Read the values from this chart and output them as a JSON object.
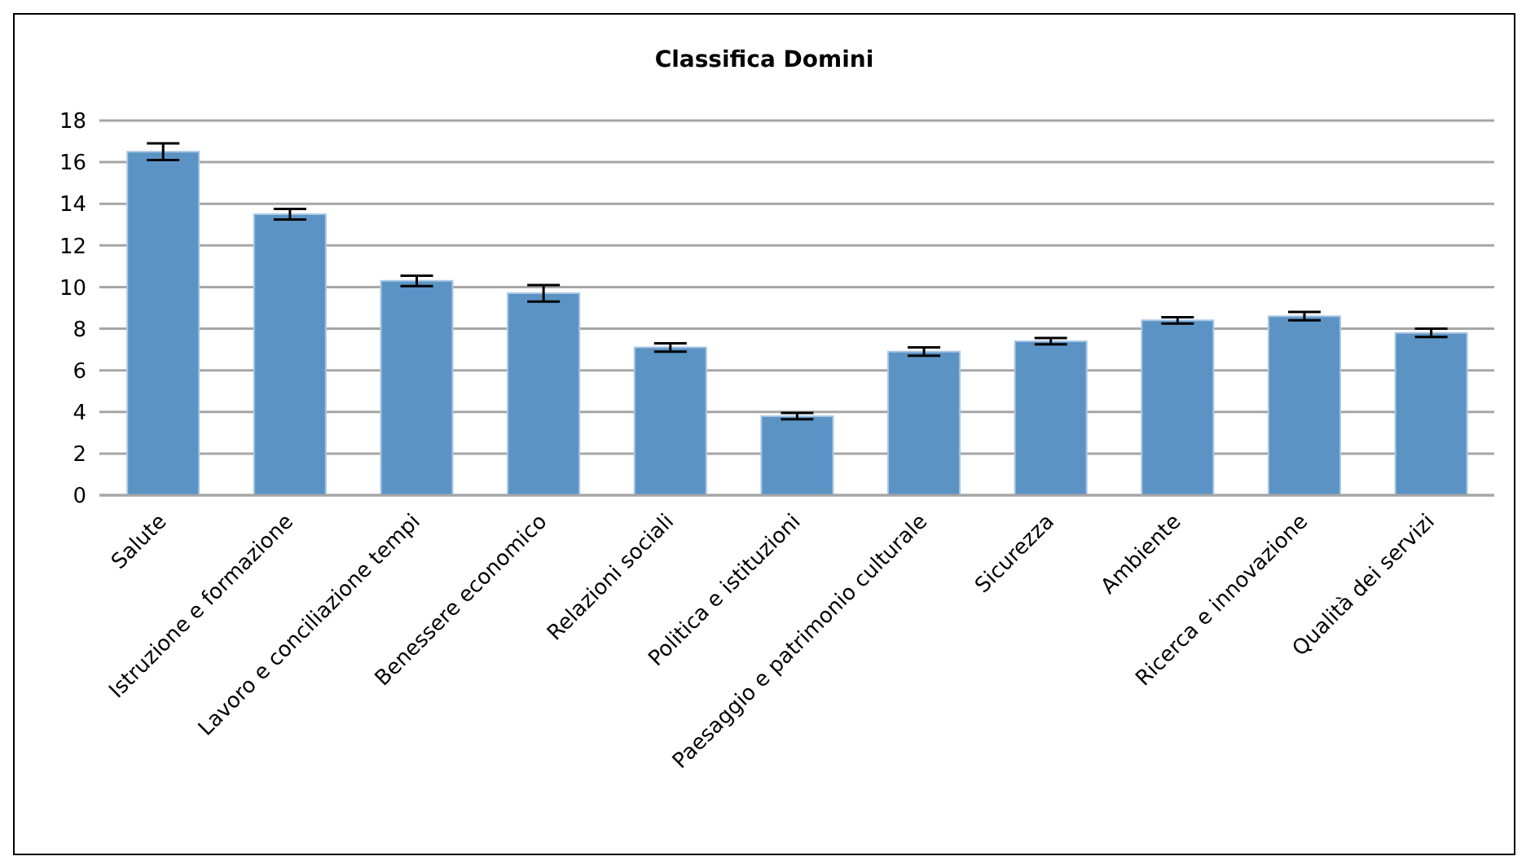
{
  "chart_data": {
    "type": "bar",
    "title": "Classifica Domini",
    "categories": [
      "Salute",
      "Istruzione e formazione",
      "Lavoro e conciliazione tempi",
      "Benessere economico",
      "Relazioni sociali",
      "Politica e istituzioni",
      "Paesaggio e patrimonio culturale",
      "Sicurezza",
      "Ambiente",
      "Ricerca e innovazione",
      "Qualità dei servizi"
    ],
    "values": [
      16.5,
      13.5,
      10.3,
      9.7,
      7.1,
      3.8,
      6.9,
      7.4,
      8.4,
      8.6,
      7.8
    ],
    "errors": [
      0.4,
      0.25,
      0.25,
      0.4,
      0.2,
      0.15,
      0.2,
      0.15,
      0.15,
      0.2,
      0.2
    ],
    "color": "#5b93c5",
    "ylim": [
      0,
      18
    ],
    "yticks": [
      0,
      2,
      4,
      6,
      8,
      10,
      12,
      14,
      16,
      18
    ],
    "grid": "y"
  }
}
